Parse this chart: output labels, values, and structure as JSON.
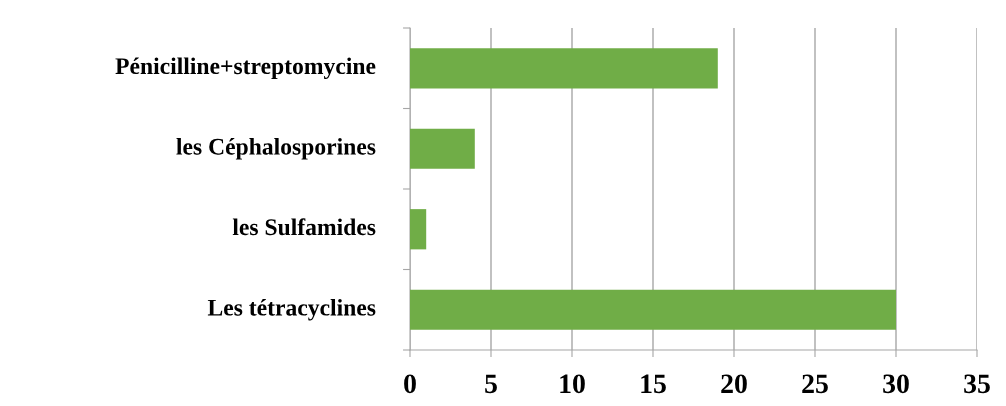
{
  "chart_data": {
    "type": "bar",
    "orientation": "horizontal",
    "categories": [
      "Pénicilline+streptomycine",
      "les Céphalosporines",
      "les Sulfamides",
      "Les tétracyclines"
    ],
    "values": [
      19,
      4,
      1,
      30
    ],
    "color": "#70ad47",
    "xlim": [
      0,
      35
    ],
    "xticks": [
      0,
      5,
      10,
      15,
      20,
      25,
      30,
      35
    ],
    "grid": "x"
  }
}
